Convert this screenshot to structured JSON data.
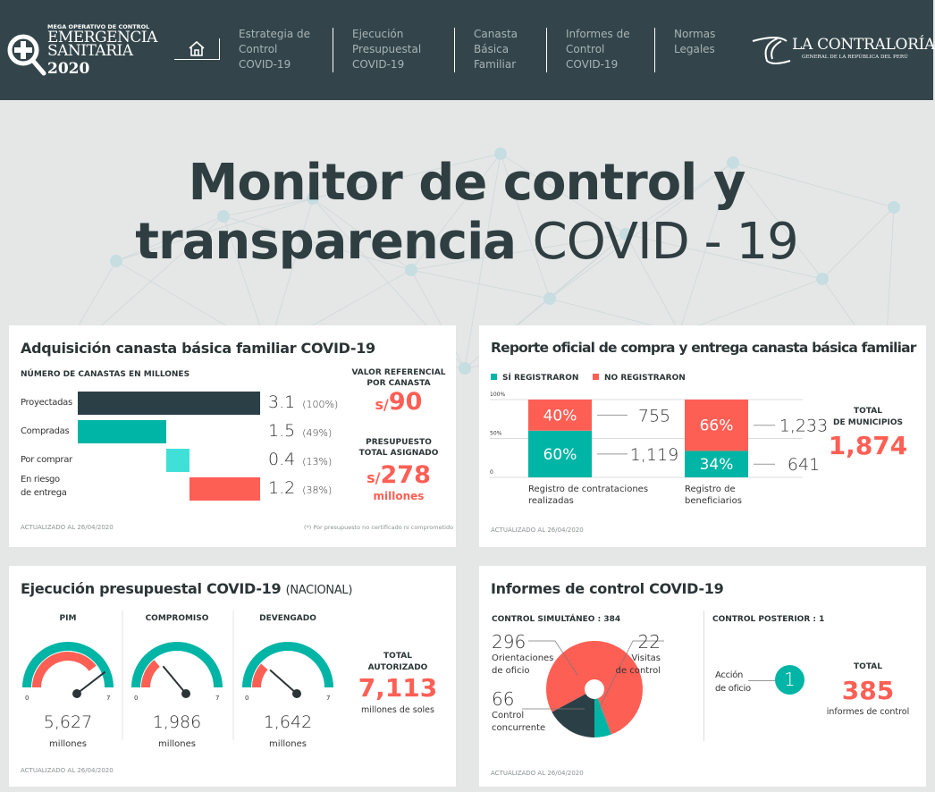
{
  "header": {
    "logo": {
      "top": "MEGA OPERATIVO DE CONTROL",
      "main": "EMERGENCIA\nSANITARIA",
      "year": "2020"
    },
    "nav": [
      {
        "label": "Estrategia de\nControl\nCOVID-19"
      },
      {
        "label": "Ejecución\nPresupuestal\nCOVID-19"
      },
      {
        "label": "Canasta\nBásica\nFamiliar"
      },
      {
        "label": "Informes de\nControl\nCOVID-19"
      },
      {
        "label": "Normas\nLegales"
      }
    ],
    "brand": {
      "name": "LA CONTRALORÍA",
      "sub": "GENERAL DE LA REPÚBLICA DEL PERÚ"
    }
  },
  "hero": {
    "line1": "Monitor de control y",
    "line2_bold": "transparencia",
    "line2_light": "COVID - 19"
  },
  "colors": {
    "dark": "#2b4046",
    "teal": "#00b5a5",
    "light_teal": "#40e0d8",
    "red": "#fe5f55",
    "header": "#33454a"
  },
  "adquisicion": {
    "title": "Adquisición canasta básica familiar COVID-19",
    "subtitle": "NÚMERO DE CANASTAS EN MILLONES",
    "rows": [
      {
        "label": "Proyectadas",
        "value": "3.1",
        "pct": "(100%)",
        "start": 0,
        "amount": 3.1,
        "color": "#2b4046"
      },
      {
        "label": "Compradas",
        "value": "1.5",
        "pct": "(49%)",
        "start": 0,
        "amount": 1.5,
        "color": "#00b5a5"
      },
      {
        "label": "Por comprar",
        "value": "0.4",
        "pct": "(13%)",
        "start": 1.5,
        "amount": 0.4,
        "color": "#40e0d8"
      },
      {
        "label": "En riesgo\nde entrega",
        "value": "1.2",
        "pct": "(38%)",
        "start": 1.9,
        "amount": 1.2,
        "color": "#fe5f55"
      }
    ],
    "valor_label": "VALOR REFERENCIAL\nPOR CANASTA",
    "valor_currency": "s/",
    "valor": "90",
    "presupuesto_label": "PRESUPUESTO\nTOTAL ASIGNADO",
    "presupuesto_currency": "s/",
    "presupuesto": "278",
    "presupuesto_unit": "millones",
    "updated": "ACTUALIZADO AL 26/04/2020",
    "note": "(*) Por presupuesto no certificado ni comprometido"
  },
  "reporte": {
    "title": "Reporte oficial de compra y entrega canasta básica familiar",
    "legend": [
      {
        "label": "SÍ REGISTRARON",
        "color": "#00b5a5"
      },
      {
        "label": "NO REGISTRARON",
        "color": "#fe5f55"
      }
    ],
    "y_ticks": [
      "100%",
      "50%",
      "0"
    ],
    "bars": [
      {
        "label": "Registro de contrataciones\nrealizadas",
        "si_pct": 60,
        "no_pct": 40,
        "si_label": "60%",
        "no_label": "40%",
        "si_count": "1,119",
        "no_count": "755"
      },
      {
        "label": "Registro de\nbeneficiarios",
        "si_pct": 34,
        "no_pct": 66,
        "si_label": "34%",
        "no_label": "66%",
        "si_count": "641",
        "no_count": "1,233"
      }
    ],
    "total_label": "TOTAL\nDE MUNICIPIOS",
    "total": "1,874",
    "updated": "ACTUALIZADO AL 26/04/2020"
  },
  "ejecucion": {
    "title": "Ejecución presupuestal COVID-19",
    "title_suffix": "(NACIONAL)",
    "gauges": [
      {
        "label": "PIM",
        "value": "5,627",
        "amount": 5627,
        "unit": "millones",
        "min": "0",
        "max": "7"
      },
      {
        "label": "COMPROMISO",
        "value": "1,986",
        "amount": 1986,
        "unit": "millones",
        "min": "0",
        "max": "7"
      },
      {
        "label": "DEVENGADO",
        "value": "1,642",
        "amount": 1642,
        "unit": "millones",
        "min": "0",
        "max": "7"
      }
    ],
    "gauge_max": 7113,
    "total_label": "TOTAL\nAUTORIZADO",
    "total": "7,113",
    "total_unit": "millones de soles",
    "updated": "ACTUALIZADO AL 26/04/2020"
  },
  "informes": {
    "title": "Informes de control COVID-19",
    "simultaneo": "CONTROL SIMULTÁNEO : 384",
    "posterior": "CONTROL POSTERIOR : 1",
    "pie": [
      {
        "value": "296",
        "amount": 296,
        "label": "Orientaciones\nde oficio",
        "color": "#fe5f55"
      },
      {
        "value": "22",
        "amount": 22,
        "label": "Visitas\nde control",
        "color": "#00b5a5"
      },
      {
        "value": "66",
        "amount": 66,
        "label": "Control\nconcurrente",
        "color": "#2b4046"
      }
    ],
    "accion_label": "Acción\nde oficio",
    "accion_value": "1",
    "total_label": "TOTAL",
    "total": "385",
    "total_unit": "informes de control",
    "updated": "ACTUALIZADO AL 26/04/2020"
  }
}
